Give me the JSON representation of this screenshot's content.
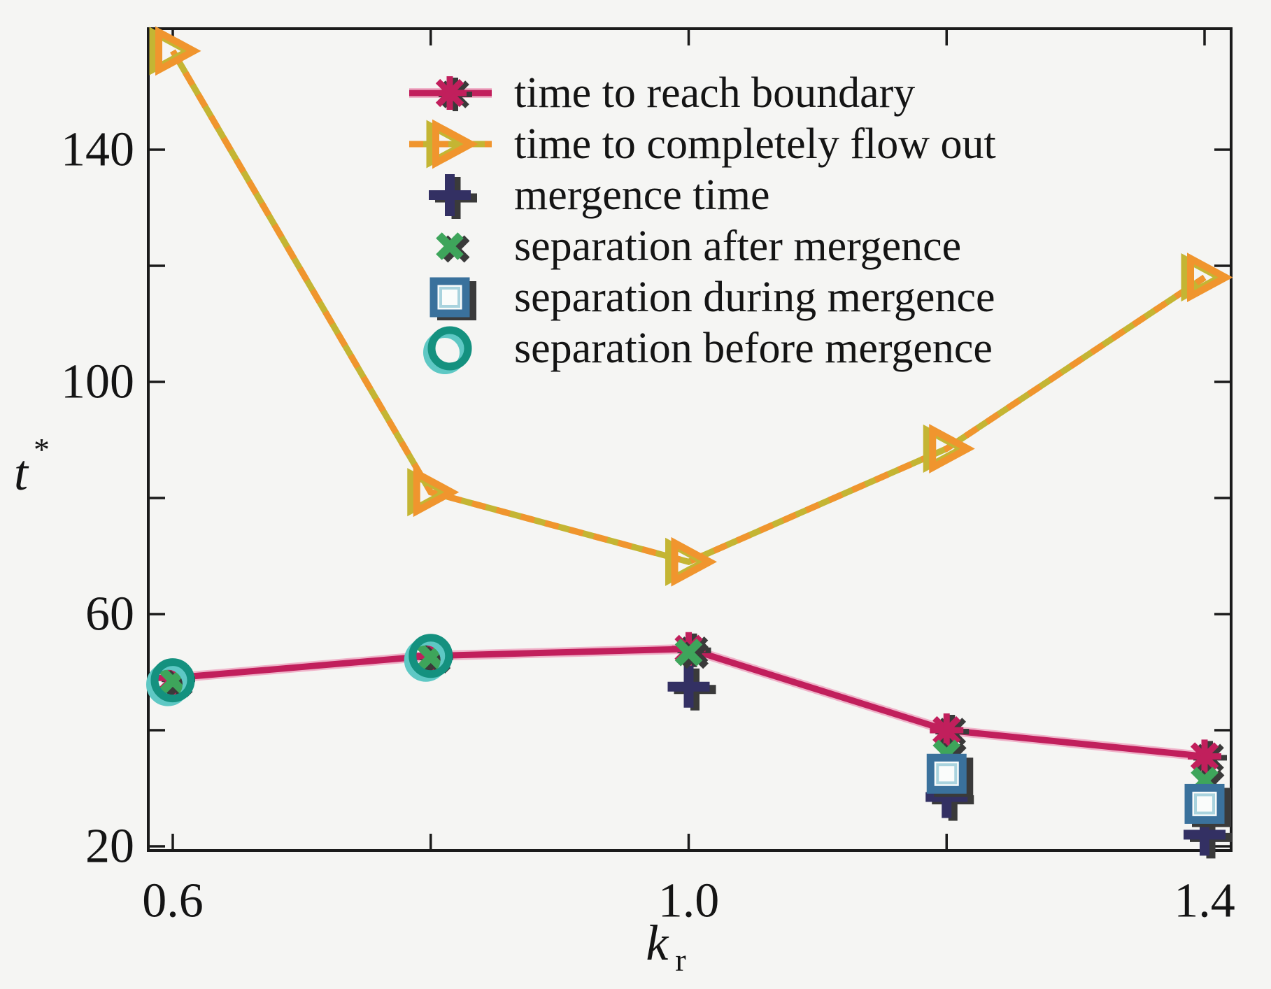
{
  "figure": {
    "background": "#f5f5f3",
    "axis_color": "#1b1b1b",
    "text_color": "#141414",
    "ylabel": {
      "base": "t",
      "superscript": "*"
    },
    "xlabel": {
      "base": "k",
      "subscript": "r"
    }
  },
  "axes": {
    "x": {
      "min": 0.58,
      "max": 1.42,
      "ticks": [
        0.6,
        0.8,
        1.0,
        1.2,
        1.4
      ],
      "tick_labels": [
        "0.6",
        "",
        "1.0",
        "",
        "1.4"
      ]
    },
    "y": {
      "min": 19,
      "max": 161,
      "ticks": [
        20,
        40,
        60,
        80,
        100,
        120,
        140
      ],
      "tick_labels": [
        "20",
        "",
        "60",
        "",
        "100",
        "",
        "140"
      ]
    }
  },
  "chart_data": {
    "type": "line",
    "title": "",
    "xlabel": "k_r",
    "ylabel": "t*",
    "grid": false,
    "legend_position": "upper-center-inside",
    "x": [
      0.6,
      0.8,
      1.0,
      1.2,
      1.4
    ],
    "series": [
      {
        "name": "time to reach boundary",
        "marker": "asterisk",
        "color": "#c11f5c",
        "halo": "#efb3c9",
        "line": true,
        "values": [
          49,
          52.8,
          54,
          40,
          35.5
        ]
      },
      {
        "name": "time to completely flow out",
        "marker": "triangle-right",
        "color": "#f0952e",
        "underlay": "#c4b533",
        "line": true,
        "values": [
          157,
          81,
          69,
          88.5,
          118
        ]
      },
      {
        "name": "mergence time",
        "marker": "plus",
        "color": "#333063",
        "line": false,
        "values": [
          null,
          null,
          47.5,
          28.5,
          22
        ]
      },
      {
        "name": "separation after mergence",
        "marker": "x",
        "color": "#3ea55b",
        "line": false,
        "values": [
          48.5,
          52.6,
          53.4,
          36,
          31.3
        ]
      },
      {
        "name": "separation during mergence",
        "marker": "square",
        "color": "#3a719c",
        "line": false,
        "values": [
          null,
          null,
          null,
          32.5,
          27.3
        ]
      },
      {
        "name": "separation before mergence",
        "marker": "circle",
        "color": "#14917f",
        "line": false,
        "values": [
          48.6,
          52.8,
          null,
          null,
          null
        ]
      }
    ]
  },
  "legend": {
    "entries": [
      "time to reach boundary",
      "time to completely flow out",
      "mergence time",
      "separation after mergence",
      "separation during mergence",
      "separation before mergence"
    ]
  }
}
